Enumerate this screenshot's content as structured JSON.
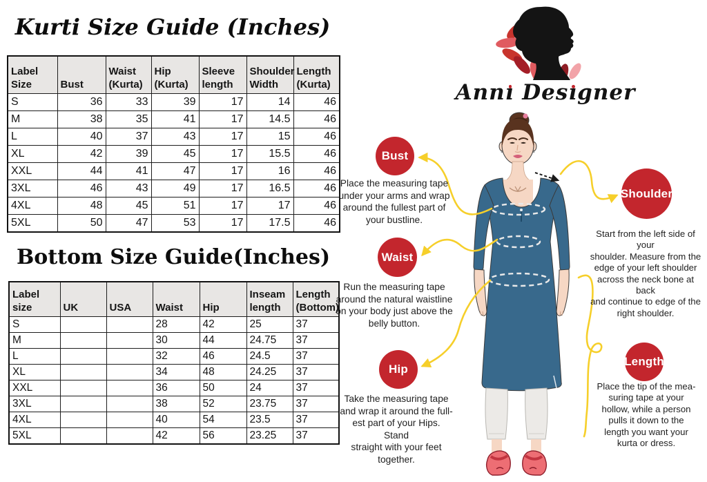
{
  "kurti_section": {
    "title": "Kurti Size Guide (Inches)",
    "table": {
      "headers": [
        "Label Size",
        "Bust",
        "Waist (Kurta)",
        "Hip (Kurta)",
        "Sleeve length",
        "Shoulder Width",
        "Length (Kurta)"
      ],
      "rows": [
        [
          "S",
          36,
          33,
          39,
          17,
          14,
          46
        ],
        [
          "M",
          38,
          35,
          41,
          17,
          14.5,
          46
        ],
        [
          "L",
          40,
          37,
          43,
          17,
          15,
          46
        ],
        [
          "XL",
          42,
          39,
          45,
          17,
          15.5,
          46
        ],
        [
          "XXL",
          44,
          41,
          47,
          17,
          16,
          46
        ],
        [
          "3XL",
          46,
          43,
          49,
          17,
          16.5,
          46
        ],
        [
          "4XL",
          48,
          45,
          51,
          17,
          17,
          46
        ],
        [
          "5XL",
          50,
          47,
          53,
          17,
          17.5,
          46
        ]
      ]
    }
  },
  "bottom_section": {
    "title": "Bottom Size Guide(Inches)",
    "table": {
      "headers": [
        "Label size",
        "UK",
        "USA",
        "Waist",
        "Hip",
        "Inseam length",
        "Length (Bottom)"
      ],
      "rows": [
        [
          "S",
          "",
          "",
          28,
          42,
          25,
          37
        ],
        [
          "M",
          "",
          "",
          30,
          44,
          24.75,
          37
        ],
        [
          "L",
          "",
          "",
          32,
          46,
          24.5,
          37
        ],
        [
          "XL",
          "",
          "",
          34,
          48,
          24.25,
          37
        ],
        [
          "XXL",
          "",
          "",
          36,
          50,
          24,
          37
        ],
        [
          "3XL",
          "",
          "",
          38,
          52,
          23.75,
          37
        ],
        [
          "4XL",
          "",
          "",
          40,
          54,
          23.5,
          37
        ],
        [
          "5XL",
          "",
          "",
          42,
          56,
          23.25,
          37
        ]
      ]
    }
  },
  "logo": {
    "brand": "Anni Designer"
  },
  "measurements": {
    "bust": {
      "label": "Bust",
      "lines": [
        "Place the measuring tape",
        "under your arms and wrap",
        "around the fullest part of",
        "your bustline."
      ]
    },
    "waist": {
      "label": "Waist",
      "lines": [
        "Run the measuring tape",
        "around the natural waistline",
        "on your body just above the",
        "belly button."
      ]
    },
    "hip": {
      "label": "Hip",
      "lines": [
        "Take the measuring tape",
        "and wrap it around the full-",
        "est part of your Hips. Stand",
        "straight with your feet",
        "together."
      ]
    },
    "shoulder": {
      "label": "Shoulder",
      "lines": [
        "Start from the left side of your",
        "shoulder. Measure from the",
        "edge of your left shoulder",
        "across the neck bone at back",
        "and continue to edge of the",
        "right shoulder."
      ]
    },
    "length": {
      "label": "Length",
      "lines": [
        "Place the tip of the mea-",
        "suring tape at your",
        "hollow, while a person",
        "pulls it down to the",
        "length you want your",
        "kurta or dress."
      ]
    }
  },
  "colors": {
    "badge_red": "#c3262d",
    "arrow_yellow": "#f6cf2a",
    "kurti_blue": "#38698c",
    "table_header_gray": "#e8e6e4"
  }
}
